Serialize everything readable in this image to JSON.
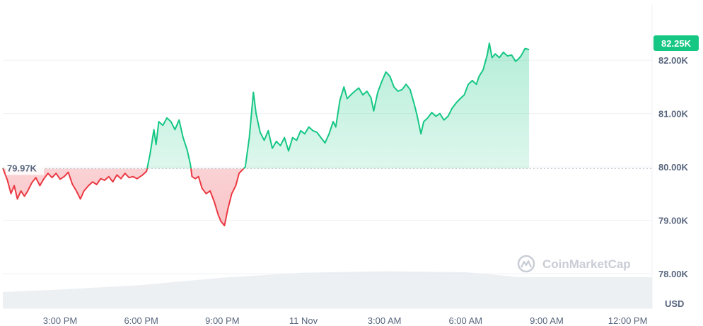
{
  "chart_data": {
    "type": "area",
    "baseline": 79.97,
    "baseline_label": "79.97K",
    "last_value_label": "82.25K",
    "currency_label": "USD",
    "watermark": "CoinMarketCap",
    "y_ticks": [
      {
        "value": 82.0,
        "label": "82.00K"
      },
      {
        "value": 81.0,
        "label": "81.00K"
      },
      {
        "value": 80.0,
        "label": "80.00K"
      },
      {
        "value": 79.0,
        "label": "79.00K"
      },
      {
        "value": 78.0,
        "label": "78.00K"
      }
    ],
    "ylim": [
      77.35,
      83.05
    ],
    "x_ticks": [
      {
        "t": 15.0,
        "label": "3:00 PM"
      },
      {
        "t": 18.0,
        "label": "6:00 PM"
      },
      {
        "t": 21.0,
        "label": "9:00 PM"
      },
      {
        "t": 24.0,
        "label": "11 Nov"
      },
      {
        "t": 27.0,
        "label": "3:00 AM"
      },
      {
        "t": 30.0,
        "label": "6:00 AM"
      },
      {
        "t": 33.0,
        "label": "9:00 AM"
      },
      {
        "t": 36.0,
        "label": "12:00 PM"
      }
    ],
    "xlim": [
      12.88,
      36.9
    ],
    "x_unit": "hours from 10 Nov 00:00",
    "colors": {
      "up": "#16c784",
      "down": "#ea3943",
      "axis_text": "#58667e",
      "grid": "#eff2f5",
      "badge": "#16c784",
      "volume": "#e6e9ee"
    },
    "series": [
      {
        "values": [
          [
            12.88,
            79.98
          ],
          [
            13.05,
            79.75
          ],
          [
            13.18,
            79.5
          ],
          [
            13.3,
            79.65
          ],
          [
            13.42,
            79.4
          ],
          [
            13.55,
            79.55
          ],
          [
            13.68,
            79.45
          ],
          [
            13.8,
            79.55
          ],
          [
            13.95,
            79.7
          ],
          [
            14.1,
            79.8
          ],
          [
            14.25,
            79.65
          ],
          [
            14.4,
            79.78
          ],
          [
            14.55,
            79.88
          ],
          [
            14.7,
            79.8
          ],
          [
            14.85,
            79.88
          ],
          [
            15.0,
            79.77
          ],
          [
            15.15,
            79.82
          ],
          [
            15.3,
            79.9
          ],
          [
            15.45,
            79.68
          ],
          [
            15.6,
            79.55
          ],
          [
            15.75,
            79.4
          ],
          [
            15.88,
            79.55
          ],
          [
            16.05,
            79.65
          ],
          [
            16.2,
            79.72
          ],
          [
            16.35,
            79.67
          ],
          [
            16.5,
            79.78
          ],
          [
            16.65,
            79.75
          ],
          [
            16.8,
            79.82
          ],
          [
            16.95,
            79.72
          ],
          [
            17.1,
            79.85
          ],
          [
            17.25,
            79.78
          ],
          [
            17.4,
            79.88
          ],
          [
            17.55,
            79.8
          ],
          [
            17.7,
            79.82
          ],
          [
            17.85,
            79.78
          ],
          [
            18.05,
            79.85
          ],
          [
            18.2,
            79.92
          ],
          [
            18.33,
            80.25
          ],
          [
            18.47,
            80.7
          ],
          [
            18.55,
            80.42
          ],
          [
            18.65,
            80.85
          ],
          [
            18.8,
            80.78
          ],
          [
            18.95,
            80.92
          ],
          [
            19.1,
            80.85
          ],
          [
            19.25,
            80.7
          ],
          [
            19.4,
            80.88
          ],
          [
            19.55,
            80.55
          ],
          [
            19.7,
            80.32
          ],
          [
            19.82,
            80.05
          ],
          [
            19.88,
            79.82
          ],
          [
            20.0,
            79.78
          ],
          [
            20.12,
            79.82
          ],
          [
            20.25,
            79.6
          ],
          [
            20.4,
            79.5
          ],
          [
            20.55,
            79.55
          ],
          [
            20.7,
            79.35
          ],
          [
            20.85,
            79.1
          ],
          [
            20.95,
            78.98
          ],
          [
            21.08,
            78.9
          ],
          [
            21.2,
            79.2
          ],
          [
            21.35,
            79.5
          ],
          [
            21.5,
            79.65
          ],
          [
            21.62,
            79.88
          ],
          [
            21.75,
            79.95
          ],
          [
            21.85,
            80.0
          ],
          [
            22.0,
            80.55
          ],
          [
            22.15,
            81.4
          ],
          [
            22.25,
            81.0
          ],
          [
            22.4,
            80.65
          ],
          [
            22.55,
            80.5
          ],
          [
            22.7,
            80.68
          ],
          [
            22.85,
            80.35
          ],
          [
            23.0,
            80.48
          ],
          [
            23.15,
            80.4
          ],
          [
            23.3,
            80.55
          ],
          [
            23.45,
            80.3
          ],
          [
            23.6,
            80.55
          ],
          [
            23.75,
            80.5
          ],
          [
            23.9,
            80.68
          ],
          [
            24.05,
            80.62
          ],
          [
            24.2,
            80.75
          ],
          [
            24.35,
            80.68
          ],
          [
            24.5,
            80.65
          ],
          [
            24.65,
            80.55
          ],
          [
            24.8,
            80.45
          ],
          [
            24.95,
            80.62
          ],
          [
            25.1,
            80.85
          ],
          [
            25.2,
            80.75
          ],
          [
            25.35,
            81.25
          ],
          [
            25.5,
            81.5
          ],
          [
            25.62,
            81.28
          ],
          [
            25.75,
            81.35
          ],
          [
            25.9,
            81.42
          ],
          [
            26.05,
            81.48
          ],
          [
            26.2,
            81.35
          ],
          [
            26.35,
            81.42
          ],
          [
            26.5,
            81.3
          ],
          [
            26.6,
            81.05
          ],
          [
            26.75,
            81.4
          ],
          [
            26.9,
            81.6
          ],
          [
            27.05,
            81.78
          ],
          [
            27.2,
            81.7
          ],
          [
            27.35,
            81.5
          ],
          [
            27.5,
            81.42
          ],
          [
            27.65,
            81.45
          ],
          [
            27.8,
            81.55
          ],
          [
            27.95,
            81.45
          ],
          [
            28.1,
            81.18
          ],
          [
            28.2,
            80.98
          ],
          [
            28.35,
            80.62
          ],
          [
            28.45,
            80.85
          ],
          [
            28.6,
            80.92
          ],
          [
            28.75,
            81.02
          ],
          [
            28.9,
            80.95
          ],
          [
            29.05,
            81.0
          ],
          [
            29.2,
            80.88
          ],
          [
            29.35,
            80.95
          ],
          [
            29.5,
            81.1
          ],
          [
            29.65,
            81.2
          ],
          [
            29.8,
            81.28
          ],
          [
            29.95,
            81.35
          ],
          [
            30.1,
            81.55
          ],
          [
            30.25,
            81.62
          ],
          [
            30.4,
            81.55
          ],
          [
            30.5,
            81.7
          ],
          [
            30.65,
            81.82
          ],
          [
            30.8,
            82.1
          ],
          [
            30.88,
            82.32
          ],
          [
            30.98,
            82.05
          ],
          [
            31.1,
            82.12
          ],
          [
            31.25,
            82.05
          ],
          [
            31.4,
            82.15
          ],
          [
            31.55,
            82.08
          ],
          [
            31.7,
            82.1
          ],
          [
            31.85,
            81.98
          ],
          [
            31.95,
            82.02
          ],
          [
            32.05,
            82.08
          ],
          [
            32.2,
            82.22
          ],
          [
            32.35,
            82.2
          ]
        ]
      }
    ],
    "volume_profile": [
      [
        12.88,
        0.33
      ],
      [
        15.0,
        0.38
      ],
      [
        18.0,
        0.47
      ],
      [
        21.0,
        0.62
      ],
      [
        24.0,
        0.72
      ],
      [
        27.0,
        0.75
      ],
      [
        30.0,
        0.73
      ],
      [
        32.0,
        0.63
      ],
      [
        36.9,
        0.63
      ]
    ]
  }
}
